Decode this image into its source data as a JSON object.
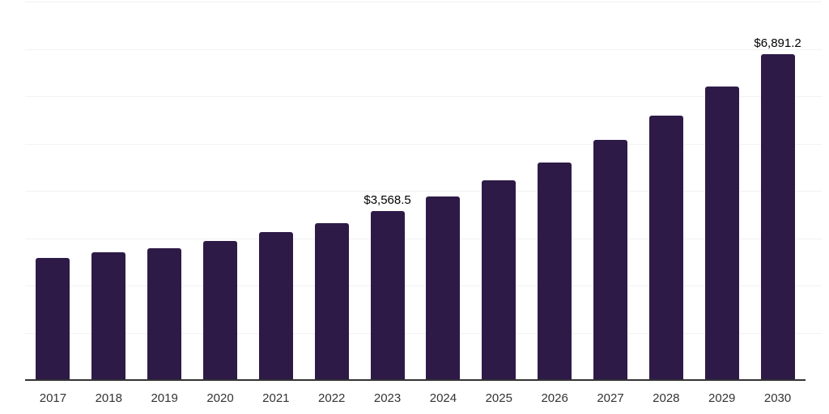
{
  "chart_data": {
    "type": "bar",
    "title": "",
    "xlabel": "",
    "ylabel": "",
    "categories": [
      "2017",
      "2018",
      "2019",
      "2020",
      "2021",
      "2022",
      "2023",
      "2024",
      "2025",
      "2026",
      "2027",
      "2028",
      "2029",
      "2030"
    ],
    "values": [
      2580,
      2700,
      2790,
      2940,
      3130,
      3320,
      3568.5,
      3880,
      4220,
      4600,
      5080,
      5590,
      6210,
      6891.2
    ],
    "data_labels": {
      "2023": "$3,568.5",
      "2030": "$6,891.2"
    },
    "ylim": [
      0,
      8000
    ],
    "gridline_step": 1000,
    "grid": "horizontal",
    "legend_position": "none",
    "colors": {
      "bar": "#2e1a47",
      "axis_line": "#333333",
      "gridline": "#f2f2f2",
      "tick_label": "#333333",
      "data_label": "#000000",
      "background": "#ffffff"
    }
  }
}
